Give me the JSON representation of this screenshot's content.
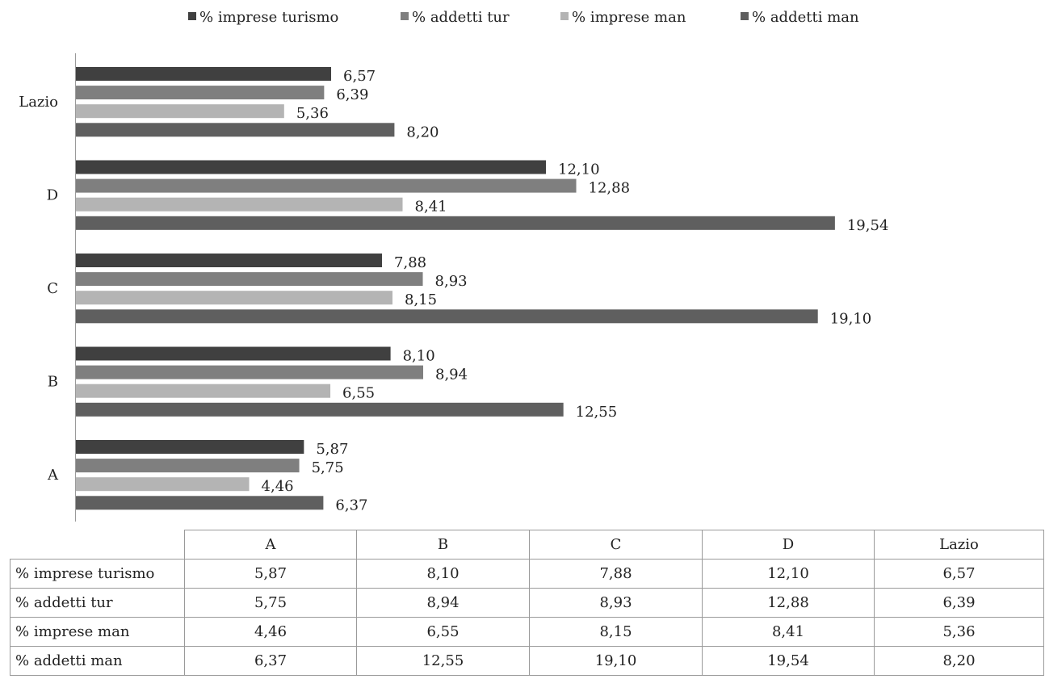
{
  "colors": {
    "series": [
      "#404040",
      "#7f7f7f",
      "#b4b4b4",
      "#5f5f5f"
    ]
  },
  "chart_data": {
    "type": "bar",
    "orientation": "horizontal",
    "categories": [
      "A",
      "B",
      "C",
      "D",
      "Lazio"
    ],
    "series": [
      {
        "name": "% imprese turismo",
        "values": [
          5.87,
          8.1,
          7.88,
          12.1,
          6.57
        ],
        "labels": [
          "5,87",
          "8,10",
          "7,88",
          "12,10",
          "6,57"
        ]
      },
      {
        "name": "% addetti tur",
        "values": [
          5.75,
          8.94,
          8.93,
          12.88,
          6.39
        ],
        "labels": [
          "5,75",
          "8,94",
          "8,93",
          "12,88",
          "6,39"
        ]
      },
      {
        "name": "% imprese man",
        "values": [
          4.46,
          6.55,
          8.15,
          8.41,
          5.36
        ],
        "labels": [
          "4,46",
          "6,55",
          "8,15",
          "8,41",
          "5,36"
        ]
      },
      {
        "name": "% addetti man",
        "values": [
          6.37,
          12.55,
          19.1,
          19.54,
          8.2
        ],
        "labels": [
          "6,37",
          "12,55",
          "19,10",
          "19,54",
          "8,20"
        ]
      }
    ],
    "title": "",
    "xlabel": "",
    "ylabel": "",
    "xlim": [
      0,
      20
    ],
    "grid": false,
    "legend_position": "top"
  },
  "table": {
    "headers": [
      "A",
      "B",
      "C",
      "D",
      "Lazio"
    ],
    "rows": [
      {
        "label": "% imprese turismo",
        "cells": [
          "5,87",
          "8,10",
          "7,88",
          "12,10",
          "6,57"
        ]
      },
      {
        "label": "% addetti tur",
        "cells": [
          "5,75",
          "8,94",
          "8,93",
          "12,88",
          "6,39"
        ]
      },
      {
        "label": "% imprese man",
        "cells": [
          "4,46",
          "6,55",
          "8,15",
          "8,41",
          "5,36"
        ]
      },
      {
        "label": "% addetti man",
        "cells": [
          "6,37",
          "12,55",
          "19,10",
          "19,54",
          "8,20"
        ]
      }
    ]
  }
}
